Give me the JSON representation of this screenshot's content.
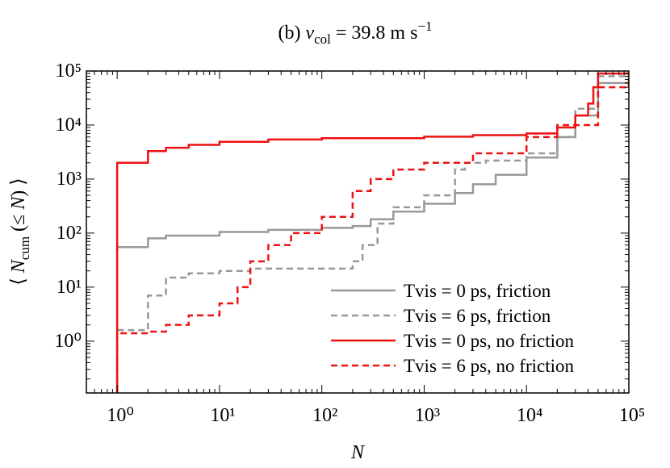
{
  "chart_data": {
    "type": "line",
    "title": [
      "(b) ",
      "v",
      "col",
      " = 39.8 m s",
      "−1"
    ],
    "xlabel": "N",
    "ylabel": [
      "⟨ ",
      "N",
      "cum",
      " (≤ ",
      "N",
      ") ⟩"
    ],
    "xscale": "log",
    "yscale": "log",
    "xlim": [
      0.5,
      100000
    ],
    "ylim": [
      0.11,
      100000
    ],
    "xticks": [
      {
        "value": 1,
        "label": "10⁰"
      },
      {
        "value": 10,
        "label": "10¹"
      },
      {
        "value": 100,
        "label": "10²"
      },
      {
        "value": 1000,
        "label": "10³"
      },
      {
        "value": 10000,
        "label": "10⁴"
      },
      {
        "value": 100000,
        "label": "10⁵"
      }
    ],
    "yticks": [
      {
        "value": 1,
        "label": "10⁰"
      },
      {
        "value": 10,
        "label": "10¹"
      },
      {
        "value": 100,
        "label": "10²"
      },
      {
        "value": 1000,
        "label": "10³"
      },
      {
        "value": 10000,
        "label": "10⁴"
      },
      {
        "value": 100000,
        "label": "10⁵"
      }
    ],
    "legend": "lower right",
    "series": [
      {
        "name": "Tvis = 0 ps, friction",
        "color": "#999999",
        "linestyle": "solid",
        "x": [
          1,
          2,
          3,
          10,
          30,
          100,
          200,
          300,
          500,
          1000,
          2000,
          3000,
          5000,
          10000,
          20000,
          30000,
          50000,
          100000
        ],
        "values": [
          55,
          80,
          90,
          105,
          115,
          125,
          135,
          180,
          250,
          350,
          550,
          800,
          1200,
          2500,
          6000,
          15000,
          60000,
          90000
        ]
      },
      {
        "name": "Tvis = 6 ps, friction",
        "color": "#999999",
        "linestyle": "dashed",
        "x": [
          1,
          2,
          3,
          5,
          10,
          20,
          100,
          200,
          250,
          350,
          500,
          1000,
          2000,
          2500,
          4000,
          10000,
          20000,
          30000,
          50000,
          100000
        ],
        "values": [
          1.6,
          7,
          15,
          18,
          20,
          22,
          22,
          30,
          60,
          150,
          300,
          500,
          1500,
          2000,
          2200,
          3000,
          6000,
          20000,
          80000,
          90000
        ]
      },
      {
        "name": "Tvis = 0 ps, no friction",
        "color": "#ee1111",
        "linestyle": "solid",
        "x": [
          1,
          1,
          2,
          3,
          5,
          10,
          30,
          100,
          1000,
          3000,
          10000,
          20000,
          30000,
          40000,
          45000,
          50000,
          100000
        ],
        "values": [
          0.1,
          2000,
          3300,
          3800,
          4300,
          4900,
          5400,
          5700,
          6100,
          6500,
          7000,
          9000,
          15000,
          25000,
          50000,
          90000,
          100000
        ]
      },
      {
        "name": "Tvis = 6 ps, no friction",
        "color": "#ee1111",
        "linestyle": "dashed",
        "x": [
          1,
          2,
          3,
          5,
          10,
          15,
          20,
          30,
          50,
          100,
          200,
          300,
          500,
          1000,
          3000,
          10000,
          20000,
          50000,
          100000
        ],
        "values": [
          1.4,
          1.5,
          2,
          3,
          5,
          10,
          30,
          60,
          100,
          200,
          600,
          1000,
          1500,
          2000,
          3000,
          6000,
          10000,
          50000,
          80000
        ]
      }
    ]
  }
}
